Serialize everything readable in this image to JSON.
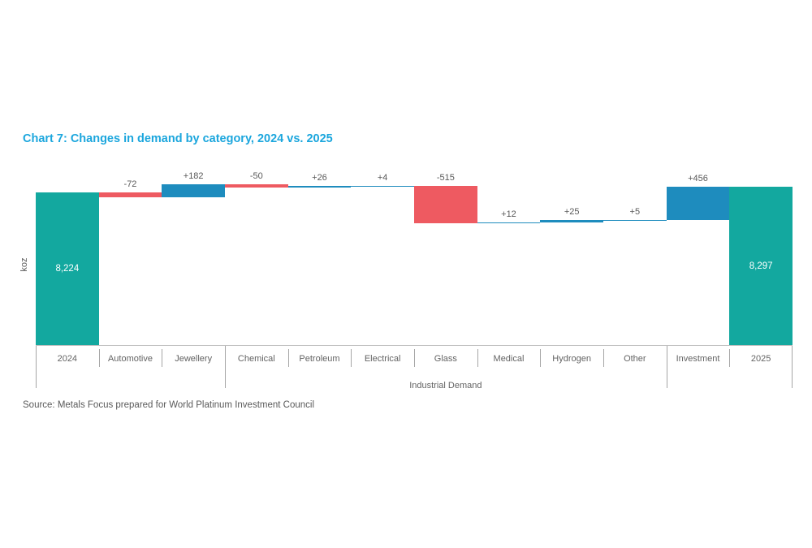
{
  "page": {
    "title": "Chart 7: Changes in demand by category, 2024 vs. 2025",
    "source": "Source: Metals Focus prepared for World Platinum Investment Council"
  },
  "chart_data": {
    "type": "bar",
    "subtype": "waterfall",
    "title": "Chart 7: Changes in demand by category, 2024 vs. 2025",
    "ylabel": "koz",
    "xlabel": "",
    "group_label": "Industrial Demand",
    "group_span_categories": [
      "Chemical",
      "Petroleum",
      "Electrical",
      "Glass",
      "Medical",
      "Hydrogen",
      "Other"
    ],
    "categories": [
      "2024",
      "Automotive",
      "Jewellery",
      "Chemical",
      "Petroleum",
      "Electrical",
      "Glass",
      "Medical",
      "Hydrogen",
      "Other",
      "Investment",
      "2025"
    ],
    "columns": [
      {
        "label": "2024",
        "kind": "total",
        "value": 8224,
        "display": "8,224"
      },
      {
        "label": "Automotive",
        "kind": "delta",
        "value": -72,
        "display": "-72"
      },
      {
        "label": "Jewellery",
        "kind": "delta",
        "value": 182,
        "display": "+182"
      },
      {
        "label": "Chemical",
        "kind": "delta",
        "value": -50,
        "display": "-50"
      },
      {
        "label": "Petroleum",
        "kind": "delta",
        "value": 26,
        "display": "+26"
      },
      {
        "label": "Electrical",
        "kind": "delta",
        "value": 4,
        "display": "+4"
      },
      {
        "label": "Glass",
        "kind": "delta",
        "value": -515,
        "display": "-515"
      },
      {
        "label": "Medical",
        "kind": "delta",
        "value": 12,
        "display": "+12"
      },
      {
        "label": "Hydrogen",
        "kind": "delta",
        "value": 25,
        "display": "+25"
      },
      {
        "label": "Other",
        "kind": "delta",
        "value": 5,
        "display": "+5"
      },
      {
        "label": "Investment",
        "kind": "delta",
        "value": 456,
        "display": "+456"
      },
      {
        "label": "2025",
        "kind": "total",
        "value": 8297,
        "display": "8,297"
      }
    ],
    "long_divider_boundaries": [
      0,
      3,
      10,
      12
    ],
    "colors": {
      "total": "#13A89F",
      "increase": "#1E8CBE",
      "decrease": "#EE5A61",
      "title": "#1BA6DD",
      "value_text": "#595959",
      "category_text": "#636363",
      "axis_line": "#BFBFBF",
      "tick_line": "#A6A6A6",
      "total_label_text": "#FFFFFF"
    },
    "legend": null,
    "grid": false
  }
}
